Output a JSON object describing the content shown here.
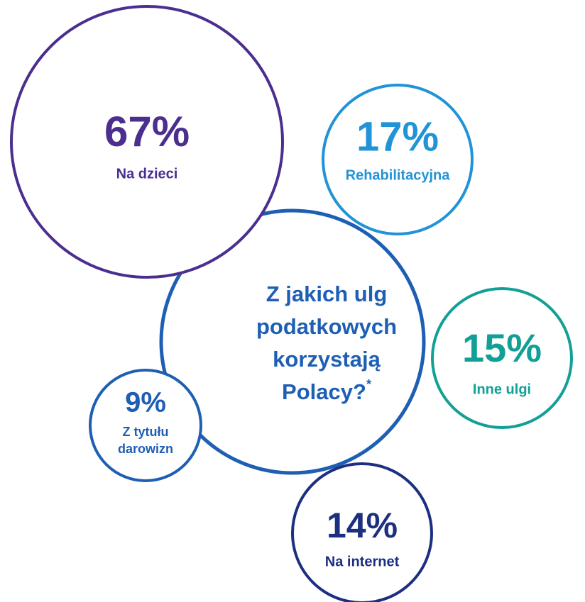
{
  "title": {
    "lines": [
      "Z jakich ulg",
      "podatkowych",
      "korzystają",
      "Polacy?"
    ],
    "footnote_mark": "*",
    "color": "#1e5fb4"
  },
  "hub_color": "#1e5fb4",
  "items": [
    {
      "value": "67%",
      "label": [
        "Na dzieci"
      ],
      "color": "#4b2e8f"
    },
    {
      "value": "17%",
      "label": [
        "Rehabilitacyjna"
      ],
      "color": "#2293d6"
    },
    {
      "value": "15%",
      "label": [
        "Inne ulgi"
      ],
      "color": "#12a096"
    },
    {
      "value": "14%",
      "label": [
        "Na internet"
      ],
      "color": "#1d2f80"
    },
    {
      "value": "9%",
      "label": [
        "Z tytułu",
        "darowizn"
      ],
      "color": "#1e5fb4"
    }
  ]
}
